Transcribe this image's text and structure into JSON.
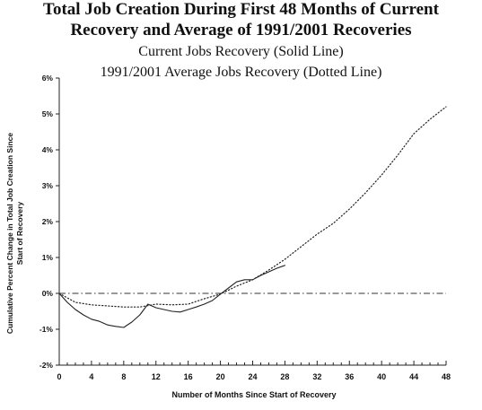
{
  "chart_data": {
    "type": "line",
    "title": "Total Job Creation During First 48 Months of Current",
    "title_line2": "Recovery and Average of 1991/2001 Recoveries",
    "subtitle": "Current Jobs Recovery (Solid Line)",
    "subtitle_line2": "1991/2001 Average Jobs Recovery (Dotted Line)",
    "xlabel": "Number of Months Since Start of Recovery",
    "ylabel": "Cumulative Percent Change in Total Job Creation Since",
    "ylabel_line2": "Start of Recovery",
    "xlim": [
      0,
      48
    ],
    "ylim": [
      -2,
      6
    ],
    "x_ticks": [
      0,
      4,
      8,
      12,
      16,
      20,
      24,
      28,
      32,
      36,
      40,
      44,
      48
    ],
    "y_ticks": [
      {
        "value": -2,
        "label": "-2%"
      },
      {
        "value": -1,
        "label": "-1%"
      },
      {
        "value": 0,
        "label": "0%"
      },
      {
        "value": 1,
        "label": "1%"
      },
      {
        "value": 2,
        "label": "2%"
      },
      {
        "value": 3,
        "label": "3%"
      },
      {
        "value": 4,
        "label": "4%"
      },
      {
        "value": 5,
        "label": "5%"
      },
      {
        "value": 6,
        "label": "6%"
      }
    ],
    "grid": false,
    "legend": "none",
    "reference_line": {
      "y": 0,
      "style": "dash-dot"
    },
    "series": [
      {
        "style": "solid",
        "x": [
          0,
          1,
          2,
          3,
          4,
          5,
          6,
          7,
          8,
          9,
          10,
          11,
          12,
          13,
          14,
          15,
          16,
          17,
          18,
          19,
          20,
          21,
          22,
          23,
          24,
          25,
          26,
          27,
          28
        ],
        "values": [
          0.0,
          -0.25,
          -0.45,
          -0.6,
          -0.72,
          -0.78,
          -0.88,
          -0.92,
          -0.95,
          -0.8,
          -0.6,
          -0.3,
          -0.4,
          -0.45,
          -0.5,
          -0.52,
          -0.45,
          -0.38,
          -0.3,
          -0.2,
          -0.02,
          0.15,
          0.32,
          0.38,
          0.38,
          0.5,
          0.6,
          0.7,
          0.78
        ]
      },
      {
        "style": "dotted",
        "x": [
          0,
          2,
          4,
          6,
          8,
          10,
          12,
          14,
          16,
          18,
          20,
          22,
          24,
          26,
          28,
          30,
          32,
          34,
          36,
          38,
          40,
          42,
          44,
          46,
          48
        ],
        "values": [
          0.0,
          -0.25,
          -0.32,
          -0.35,
          -0.38,
          -0.38,
          -0.3,
          -0.32,
          -0.3,
          -0.15,
          -0.02,
          0.2,
          0.38,
          0.65,
          0.95,
          1.3,
          1.65,
          1.95,
          2.35,
          2.8,
          3.3,
          3.85,
          4.45,
          4.85,
          5.2
        ]
      }
    ]
  }
}
